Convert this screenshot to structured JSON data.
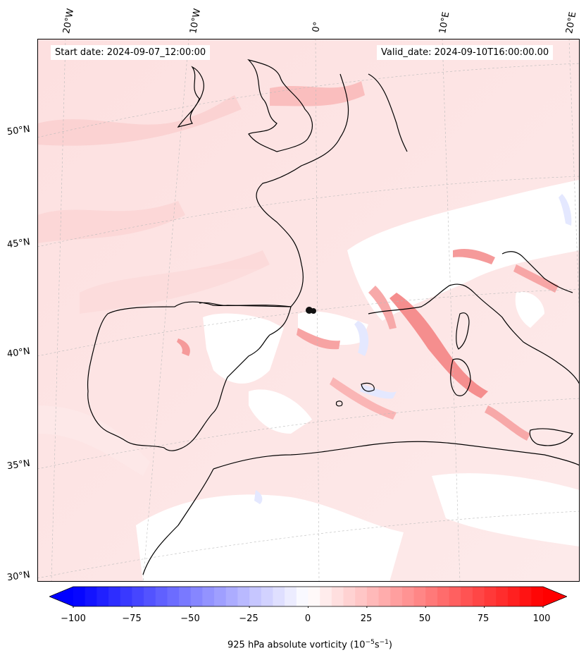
{
  "header": {
    "start_date": "Start date: 2024-09-07_12:00:00",
    "valid_date": "Valid_date: 2024-09-10T16:00:00.00"
  },
  "map": {
    "longitude_labels": [
      "20°W",
      "10°W",
      "0°",
      "10°E",
      "20°E"
    ],
    "latitude_labels": [
      "50°N",
      "45°N",
      "40°N",
      "35°N",
      "30°N"
    ],
    "region": "Western Europe / Iberia / Western Mediterranean",
    "marker": "black-dot"
  },
  "colorbar": {
    "ticks": [
      "−100",
      "−75",
      "−50",
      "−25",
      "0",
      "25",
      "50",
      "75",
      "100"
    ],
    "label_text": "925 hPa absolute vorticity (10",
    "label_exp1": "−5",
    "label_mid": "s",
    "label_exp2": "−1",
    "label_end": ")",
    "vmin": -100,
    "vmax": 100,
    "colors": {
      "negative": "#0000ff",
      "zero": "#ffffff",
      "positive": "#ff0000"
    },
    "extend": "both"
  },
  "colors": {
    "land_fill": "#fde3e3",
    "coastline": "#000000"
  }
}
